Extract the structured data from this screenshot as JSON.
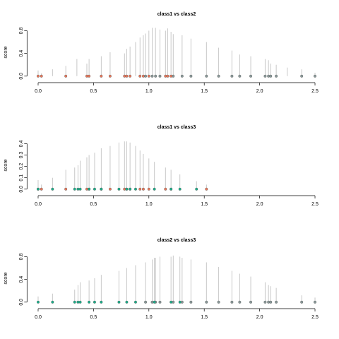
{
  "chart_data": [
    {
      "type": "stem",
      "title": "class1 vs class2",
      "ylabel": "score",
      "xlim": [
        -0.1,
        2.6
      ],
      "ylim": [
        -0.04,
        0.88
      ],
      "xticks": [
        {
          "value": 0,
          "label": "0.0"
        },
        0.5,
        {
          "value": 1,
          "label": "1.0"
        },
        1.5,
        {
          "value": 2,
          "label": "2.0"
        },
        2.5
      ],
      "yticks": [
        {
          "value": 0,
          "label": "0.0"
        },
        0.4,
        0.8
      ],
      "stems": {
        "color": "#c8c8c8",
        "x": [
          0.0,
          0.03,
          0.13,
          0.25,
          0.35,
          0.44,
          0.46,
          0.57,
          0.65,
          0.78,
          0.8,
          0.83,
          0.88,
          0.92,
          0.95,
          0.97,
          1.0,
          1.03,
          1.06,
          1.1,
          1.15,
          1.17,
          1.2,
          1.22,
          1.3,
          1.38,
          1.52,
          1.63,
          1.75,
          1.82,
          1.92,
          2.05,
          2.08,
          2.1,
          2.15,
          2.25,
          2.38,
          2.5
        ],
        "values": [
          0.1,
          0.05,
          0.12,
          0.18,
          0.3,
          0.22,
          0.3,
          0.35,
          0.42,
          0.4,
          0.48,
          0.52,
          0.6,
          0.68,
          0.72,
          0.75,
          0.8,
          0.85,
          0.85,
          0.82,
          0.8,
          0.84,
          0.78,
          0.74,
          0.72,
          0.66,
          0.6,
          0.5,
          0.45,
          0.38,
          0.35,
          0.3,
          0.28,
          0.22,
          0.2,
          0.15,
          0.12,
          0.06
        ]
      },
      "series": [
        {
          "color": "#e8775a",
          "x": [
            0.0,
            0.03,
            0.25,
            0.44,
            0.46,
            0.57,
            0.65,
            0.78,
            0.8,
            0.83,
            0.92,
            0.95,
            1.0,
            1.15,
            1.17,
            1.2
          ],
          "values": [
            0,
            0,
            0,
            0,
            0,
            0,
            0,
            0,
            0,
            0,
            0,
            0,
            0,
            0,
            0,
            0
          ]
        },
        {
          "color": "#8a9a9a",
          "x": [
            0.97,
            1.03,
            1.06,
            1.1,
            1.22,
            1.3,
            1.38,
            1.52,
            1.63,
            1.75,
            1.82,
            1.92,
            2.05,
            2.08,
            2.1,
            2.15,
            2.38,
            2.5
          ],
          "values": [
            0,
            0,
            0,
            0,
            0,
            0,
            0,
            0,
            0,
            0,
            0,
            0,
            0,
            0,
            0,
            0,
            0,
            0
          ]
        }
      ]
    },
    {
      "type": "stem",
      "title": "class1 vs class3",
      "ylabel": "score",
      "xlim": [
        -0.1,
        2.6
      ],
      "ylim": [
        -0.02,
        0.44
      ],
      "xticks": [
        {
          "value": 0,
          "label": "0.0"
        },
        0.5,
        {
          "value": 1,
          "label": "1.0"
        },
        1.5,
        {
          "value": 2,
          "label": "2.0"
        },
        2.5
      ],
      "yticks": [
        {
          "value": 0,
          "label": "0.0"
        },
        0.1,
        0.2,
        0.3,
        0.4
      ],
      "stems": {
        "color": "#c8c8c8",
        "x": [
          0.0,
          0.03,
          0.13,
          0.25,
          0.33,
          0.36,
          0.38,
          0.44,
          0.46,
          0.51,
          0.57,
          0.65,
          0.73,
          0.78,
          0.8,
          0.83,
          0.88,
          0.92,
          0.95,
          1.0,
          1.05,
          1.15,
          1.2,
          1.28,
          1.43,
          1.52
        ],
        "values": [
          0.08,
          0.04,
          0.1,
          0.17,
          0.19,
          0.21,
          0.25,
          0.28,
          0.3,
          0.32,
          0.36,
          0.38,
          0.41,
          0.42,
          0.42,
          0.41,
          0.38,
          0.34,
          0.31,
          0.27,
          0.24,
          0.19,
          0.17,
          0.13,
          0.07,
          0.04
        ]
      },
      "series": [
        {
          "color": "#e8775a",
          "x": [
            0.0,
            0.03,
            0.25,
            0.44,
            0.46,
            0.57,
            0.65,
            0.78,
            0.8,
            0.83,
            0.92,
            0.95,
            1.0,
            1.15,
            1.2,
            1.52
          ],
          "values": [
            0,
            0,
            0,
            0,
            0,
            0,
            0,
            0,
            0,
            0,
            0,
            0,
            0,
            0,
            0,
            0
          ]
        },
        {
          "color": "#1aaf8a",
          "x": [
            0.0,
            0.13,
            0.33,
            0.36,
            0.38,
            0.46,
            0.51,
            0.57,
            0.73,
            0.8,
            0.83,
            0.88,
            1.05,
            1.2,
            1.28,
            1.43
          ],
          "values": [
            0,
            0,
            0,
            0,
            0,
            0,
            0,
            0,
            0,
            0,
            0,
            0,
            0,
            0,
            0,
            0
          ]
        }
      ]
    },
    {
      "type": "stem",
      "title": "class2 vs class3",
      "ylabel": "score",
      "xlim": [
        -0.1,
        2.6
      ],
      "ylim": [
        -0.04,
        0.88
      ],
      "xticks": [
        {
          "value": 0,
          "label": "0.0"
        },
        0.5,
        {
          "value": 1,
          "label": "1.0"
        },
        1.5,
        {
          "value": 2,
          "label": "2.0"
        },
        2.5
      ],
      "yticks": [
        {
          "value": 0,
          "label": "0.0"
        },
        0.4,
        0.8
      ],
      "stems": {
        "color": "#c8c8c8",
        "x": [
          0.0,
          0.13,
          0.33,
          0.36,
          0.38,
          0.46,
          0.51,
          0.57,
          0.73,
          0.8,
          0.88,
          0.97,
          1.03,
          1.05,
          1.06,
          1.1,
          1.2,
          1.22,
          1.28,
          1.3,
          1.38,
          1.52,
          1.63,
          1.75,
          1.82,
          1.92,
          2.05,
          2.08,
          2.1,
          2.15,
          2.38,
          2.5
        ],
        "values": [
          0.1,
          0.15,
          0.22,
          0.3,
          0.35,
          0.38,
          0.42,
          0.48,
          0.55,
          0.6,
          0.65,
          0.7,
          0.75,
          0.78,
          0.78,
          0.8,
          0.8,
          0.82,
          0.8,
          0.78,
          0.75,
          0.7,
          0.62,
          0.55,
          0.5,
          0.45,
          0.35,
          0.3,
          0.28,
          0.25,
          0.12,
          0.08
        ]
      },
      "series": [
        {
          "color": "#8a9a9a",
          "x": [
            0.97,
            1.03,
            1.06,
            1.1,
            1.22,
            1.3,
            1.38,
            1.52,
            1.63,
            1.75,
            1.82,
            1.92,
            2.05,
            2.08,
            2.1,
            2.15,
            2.38,
            2.5
          ],
          "values": [
            0,
            0,
            0,
            0,
            0,
            0,
            0,
            0,
            0,
            0,
            0,
            0,
            0,
            0,
            0,
            0,
            0,
            0
          ]
        },
        {
          "color": "#1aaf8a",
          "x": [
            0.0,
            0.13,
            0.33,
            0.36,
            0.38,
            0.46,
            0.51,
            0.57,
            0.73,
            0.8,
            0.88,
            1.05,
            1.2,
            1.28
          ],
          "values": [
            0,
            0,
            0,
            0,
            0,
            0,
            0,
            0,
            0,
            0,
            0,
            0,
            0,
            0
          ]
        }
      ]
    }
  ]
}
